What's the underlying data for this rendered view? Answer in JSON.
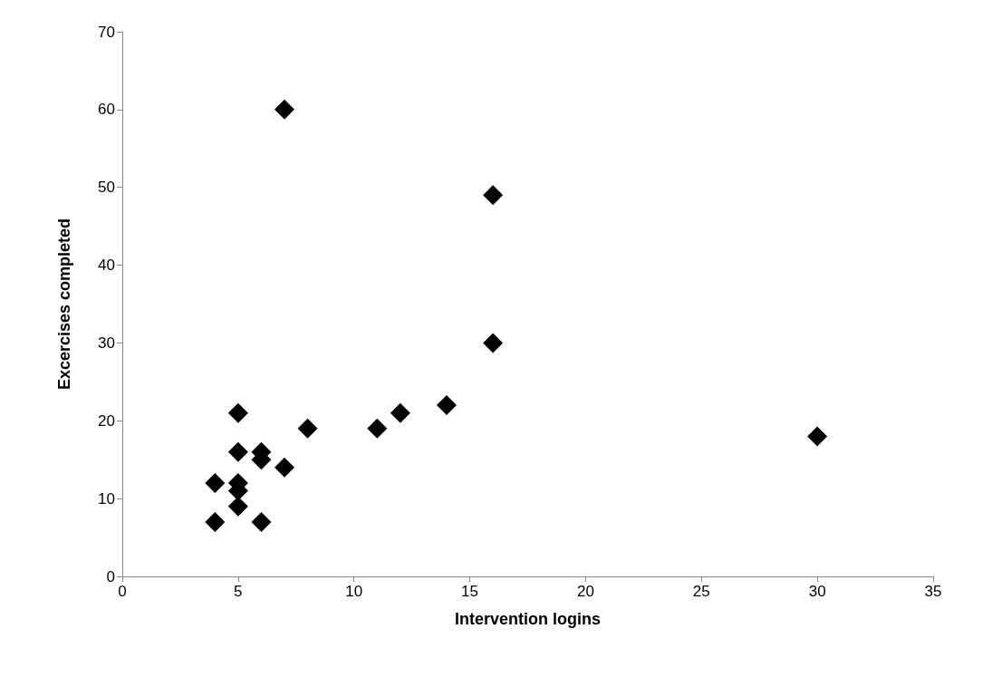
{
  "chart_data": {
    "type": "scatter",
    "xlabel": "Intervention logins",
    "ylabel": "Excercises completed",
    "x": [
      4,
      4,
      5,
      5,
      5,
      5,
      5,
      6,
      6,
      6,
      7,
      7,
      8,
      11,
      12,
      14,
      16,
      16,
      30
    ],
    "values": [
      12,
      7,
      21,
      16,
      12,
      11,
      9,
      16,
      15,
      7,
      14,
      60,
      19,
      19,
      21,
      22,
      49,
      30,
      18
    ],
    "color": "#000000",
    "marker": "diamond",
    "xlim": [
      0,
      35
    ],
    "xticks": [
      0,
      5,
      10,
      15,
      20,
      25,
      30,
      35
    ],
    "ylim": [
      0,
      70
    ],
    "yticks": [
      0,
      10,
      20,
      30,
      40,
      50,
      60,
      70
    ],
    "grid": false
  }
}
